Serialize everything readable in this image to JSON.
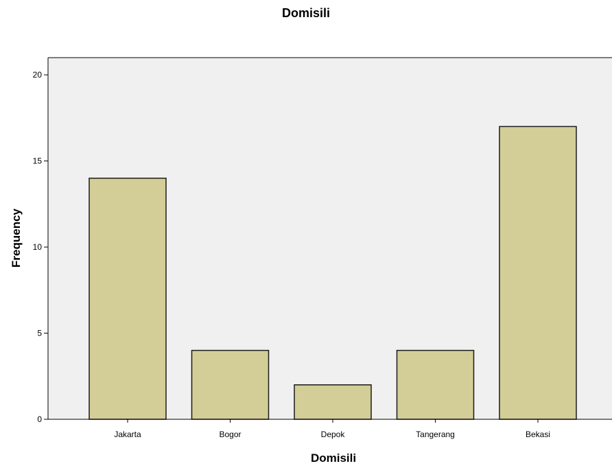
{
  "chart_data": {
    "type": "bar",
    "title": "Domisili",
    "xlabel": "Domisili",
    "ylabel": "Frequency",
    "categories": [
      "Jakarta",
      "Bogor",
      "Depok",
      "Tangerang",
      "Bekasi"
    ],
    "values": [
      14,
      4,
      2,
      4,
      17
    ],
    "ylim": [
      0,
      21
    ],
    "yticks": [
      "0",
      "5",
      "10",
      "15",
      "20"
    ],
    "grid": false,
    "colors": {
      "bar_fill": "#d3ce97",
      "bar_stroke": "#1a1a1a",
      "plot_bg": "#f0f0f0",
      "axis": "#000000"
    }
  }
}
